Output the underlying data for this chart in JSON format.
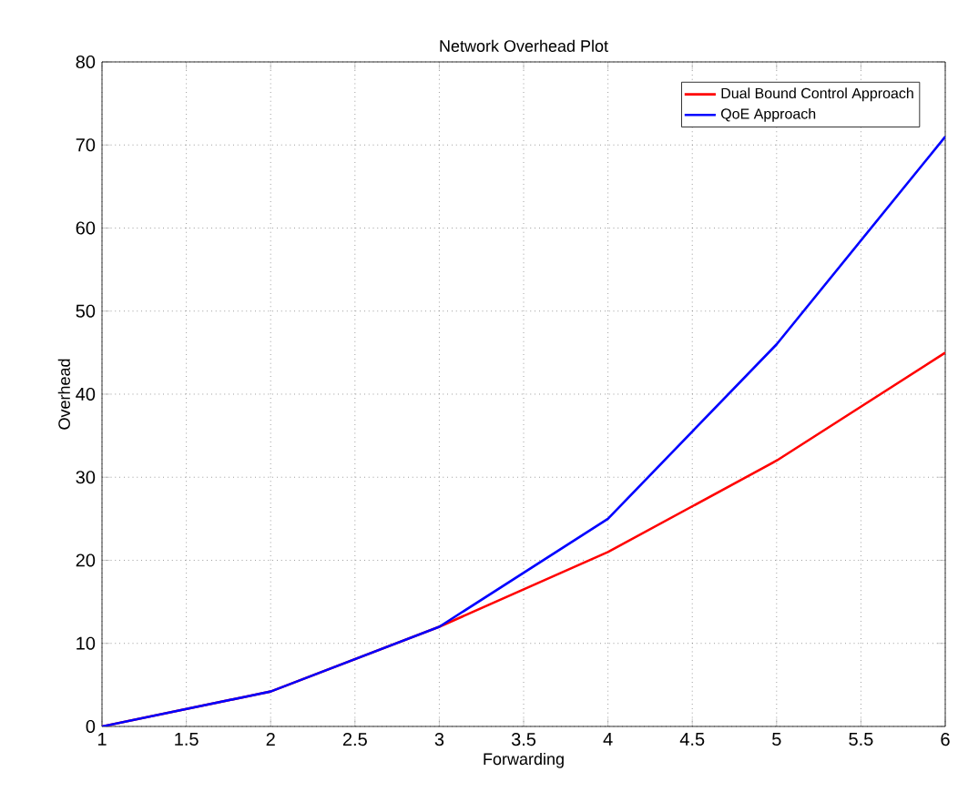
{
  "chart_data": {
    "type": "line",
    "title": "Network Overhead Plot",
    "xlabel": "Forwarding",
    "ylabel": "Overhead",
    "x": [
      1,
      2,
      3,
      4,
      5,
      6
    ],
    "series": [
      {
        "name": "Dual Bound Control Approach",
        "color": "#ff0000",
        "values": [
          0,
          4.2,
          12,
          21,
          32,
          45
        ]
      },
      {
        "name": "QoE Approach",
        "color": "#0000ff",
        "values": [
          0,
          4.2,
          12,
          25,
          46,
          71
        ]
      }
    ],
    "xlim": [
      1,
      6
    ],
    "ylim": [
      0,
      80
    ],
    "xticks": [
      1,
      1.5,
      2,
      2.5,
      3,
      3.5,
      4,
      4.5,
      5,
      5.5,
      6
    ],
    "yticks": [
      0,
      10,
      20,
      30,
      40,
      50,
      60,
      70,
      80
    ],
    "grid": true,
    "legend": "top right",
    "marker": "none",
    "line_style": "solid"
  }
}
